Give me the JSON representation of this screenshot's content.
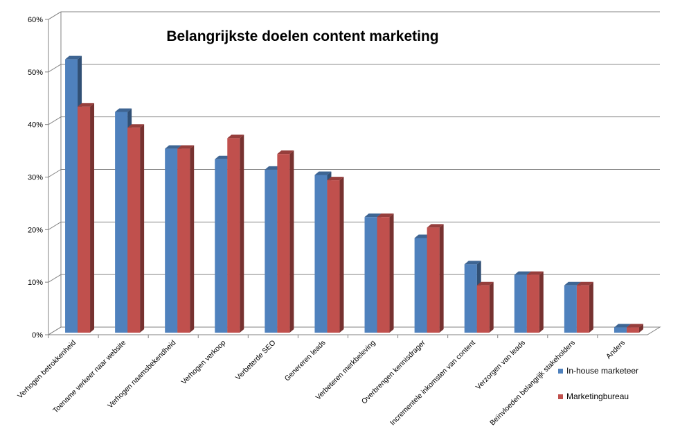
{
  "chart_data": {
    "type": "bar",
    "title": "Belangrijkste doelen content marketing",
    "xlabel": "",
    "ylabel": "",
    "ylim": [
      0,
      60
    ],
    "yticks": [
      "0%",
      "10%",
      "20%",
      "30%",
      "40%",
      "50%",
      "60%"
    ],
    "grid": true,
    "legend_position": "right",
    "categories": [
      "Verhogen betrokkenheid",
      "Toename verkeer naar website",
      "Verhogen naamsbekendheid",
      "Verhogen verkoop",
      "Verbeterde SEO",
      "Genereren leads",
      "Verbeteren merkbeleving",
      "Overbrengen kennisdrager",
      "Incrementele inkomsten van content",
      "Verzorgen van leads",
      "Beïnvloeden belangrijk stakeholders",
      "Anders"
    ],
    "series": [
      {
        "name": "In-house marketeer",
        "color": "#4F81BD",
        "values": [
          52,
          42,
          35,
          33,
          31,
          30,
          22,
          18,
          13,
          11,
          9,
          1
        ]
      },
      {
        "name": "Marketingbureau",
        "color": "#C0504D",
        "values": [
          43,
          39,
          35,
          37,
          34,
          29,
          22,
          20,
          9,
          11,
          9,
          1
        ]
      }
    ]
  }
}
